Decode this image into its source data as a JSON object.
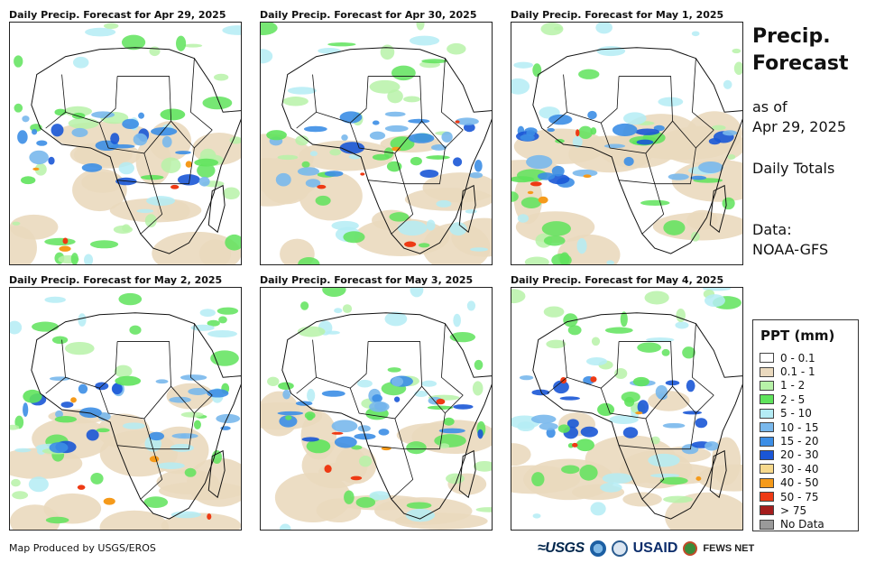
{
  "panels": [
    {
      "title": "Daily Precip. Forecast for Apr 29, 2025"
    },
    {
      "title": "Daily Precip. Forecast for Apr 30, 2025"
    },
    {
      "title": "Daily Precip. Forecast for May 1, 2025"
    },
    {
      "title": "Daily Precip. Forecast for May 2, 2025"
    },
    {
      "title": "Daily Precip. Forecast for May 3, 2025"
    },
    {
      "title": "Daily Precip. Forecast for May 4, 2025"
    }
  ],
  "side": {
    "title_line1": "Precip.",
    "title_line2": "Forecast",
    "asof_label": "as of",
    "asof_date": "Apr 29, 2025",
    "totals": "Daily Totals",
    "data_label": "Data:",
    "data_source": "NOAA-GFS"
  },
  "legend": {
    "title": "PPT (mm)",
    "items": [
      {
        "label": "0 - 0.1",
        "color": "#ffffff"
      },
      {
        "label": "0.1 - 1",
        "color": "#ead9be"
      },
      {
        "label": "1 - 2",
        "color": "#b7f2a8"
      },
      {
        "label": "2 - 5",
        "color": "#5fe35c"
      },
      {
        "label": "5 - 10",
        "color": "#b4ecf5"
      },
      {
        "label": "10 - 15",
        "color": "#79b8ec"
      },
      {
        "label": "15 - 20",
        "color": "#3c8ee6"
      },
      {
        "label": "20 - 30",
        "color": "#1a56d6"
      },
      {
        "label": "30 - 40",
        "color": "#f7d98c"
      },
      {
        "label": "40 - 50",
        "color": "#f59a1a"
      },
      {
        "label": "50 - 75",
        "color": "#ee3a14"
      },
      {
        "label": "> 75",
        "color": "#a51d1d"
      },
      {
        "label": "No Data",
        "color": "#9a9a9a"
      }
    ]
  },
  "footer": {
    "credit": "Map Produced by USGS/EROS"
  },
  "logos": {
    "usgs": "≈USGS",
    "usaid": "USAID",
    "fews": "FEWS NET"
  }
}
